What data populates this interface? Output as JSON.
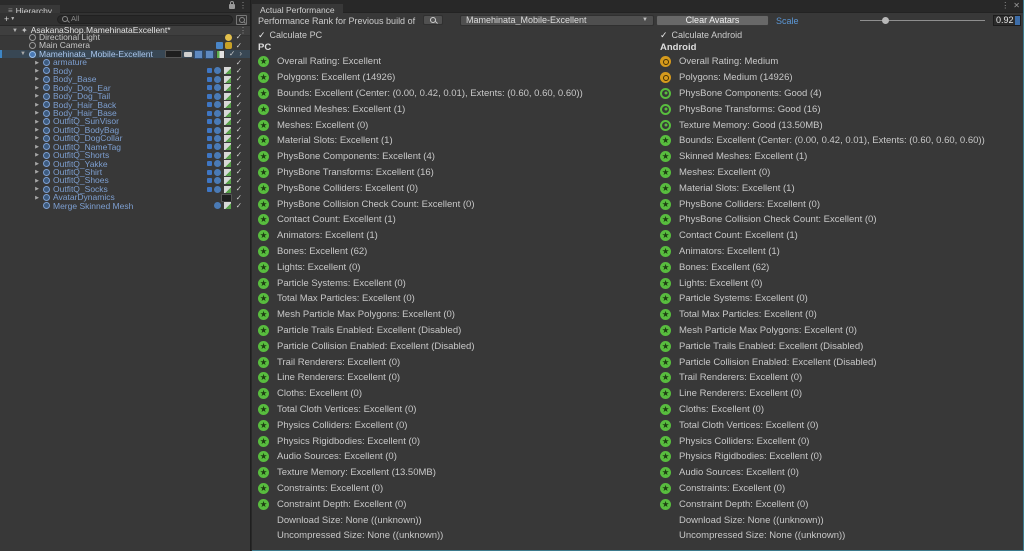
{
  "hierarchy": {
    "tab": "Hierarchy",
    "toolbar": {
      "add_button": "+",
      "search_placeholder": "All"
    },
    "scene": "AsakanaShop.MamehinataExcellent*",
    "items": [
      {
        "label": "Directional Light",
        "kind": "light",
        "level": 1,
        "fold": "none",
        "color": "plain",
        "right": [
          "sun"
        ],
        "check": true
      },
      {
        "label": "Main Camera",
        "kind": "camera",
        "level": 1,
        "fold": "none",
        "color": "plain",
        "right": [
          "camera",
          "lock"
        ],
        "check": true
      },
      {
        "label": "Mamehinata_Mobile-Excellent",
        "kind": "avatar",
        "level": 1,
        "fold": "open",
        "color": "prefab",
        "selected": true,
        "right": [
          "badge",
          "plug",
          "doc-blue",
          "doc-blue",
          "doc-green"
        ],
        "check": true,
        "arrow": true
      },
      {
        "label": "armature",
        "kind": "gameobject",
        "level": 2,
        "fold": "closed",
        "color": "prefab",
        "right": [],
        "check": true
      },
      {
        "label": "Body",
        "kind": "gameobject",
        "level": 2,
        "fold": "closed",
        "color": "prefab",
        "right": [
          "tag",
          "anim",
          "mesh"
        ],
        "check": true
      },
      {
        "label": "Body_Base",
        "kind": "gameobject",
        "level": 2,
        "fold": "closed",
        "color": "prefab",
        "right": [
          "tag",
          "anim",
          "mesh"
        ],
        "check": true
      },
      {
        "label": "Body_Dog_Ear",
        "kind": "gameobject",
        "level": 2,
        "fold": "closed",
        "color": "prefab",
        "right": [
          "tag",
          "anim",
          "mesh"
        ],
        "check": true
      },
      {
        "label": "Body_Dog_Tail",
        "kind": "gameobject",
        "level": 2,
        "fold": "closed",
        "color": "prefab",
        "right": [
          "tag",
          "anim",
          "mesh"
        ],
        "check": true
      },
      {
        "label": "Body_Hair_Back",
        "kind": "gameobject",
        "level": 2,
        "fold": "closed",
        "color": "prefab",
        "right": [
          "tag",
          "anim",
          "mesh"
        ],
        "check": true
      },
      {
        "label": "Body_Hair_Base",
        "kind": "gameobject",
        "level": 2,
        "fold": "closed",
        "color": "prefab",
        "right": [
          "tag",
          "anim",
          "mesh"
        ],
        "check": true
      },
      {
        "label": "OutfitQ_SunVisor",
        "kind": "gameobject",
        "level": 2,
        "fold": "closed",
        "color": "prefab",
        "right": [
          "tag",
          "anim",
          "mesh"
        ],
        "check": true
      },
      {
        "label": "OutfitQ_BodyBag",
        "kind": "gameobject",
        "level": 2,
        "fold": "closed",
        "color": "prefab",
        "right": [
          "tag",
          "anim",
          "mesh"
        ],
        "check": true
      },
      {
        "label": "OutfitQ_DogCollar",
        "kind": "gameobject",
        "level": 2,
        "fold": "closed",
        "color": "prefab",
        "right": [
          "tag",
          "anim",
          "mesh"
        ],
        "check": true
      },
      {
        "label": "OutfitQ_NameTag",
        "kind": "gameobject",
        "level": 2,
        "fold": "closed",
        "color": "prefab",
        "right": [
          "tag",
          "anim",
          "mesh"
        ],
        "check": true
      },
      {
        "label": "OutfitQ_Shorts",
        "kind": "gameobject",
        "level": 2,
        "fold": "closed",
        "color": "prefab",
        "right": [
          "tag",
          "anim",
          "mesh"
        ],
        "check": true
      },
      {
        "label": "OutfitQ_Yakke",
        "kind": "gameobject",
        "level": 2,
        "fold": "closed",
        "color": "prefab",
        "right": [
          "tag",
          "anim",
          "mesh"
        ],
        "check": true
      },
      {
        "label": "OutfitQ_Shirt",
        "kind": "gameobject",
        "level": 2,
        "fold": "closed",
        "color": "prefab",
        "right": [
          "tag",
          "anim",
          "mesh"
        ],
        "check": true
      },
      {
        "label": "OutfitQ_Shoes",
        "kind": "gameobject",
        "level": 2,
        "fold": "closed",
        "color": "prefab",
        "right": [
          "tag",
          "anim",
          "mesh"
        ],
        "check": true
      },
      {
        "label": "OutfitQ_Socks",
        "kind": "gameobject",
        "level": 2,
        "fold": "closed",
        "color": "prefab",
        "right": [
          "tag",
          "anim",
          "mesh"
        ],
        "check": true
      },
      {
        "label": "AvatarDynamics",
        "kind": "gameobject",
        "level": 2,
        "fold": "closed",
        "color": "prefab",
        "right": [
          "badge2"
        ],
        "check": true
      },
      {
        "label": "Merge Skinned Mesh",
        "kind": "gameobject",
        "level": 2,
        "fold": "none",
        "color": "prefab",
        "right": [
          "anim",
          "mesh"
        ],
        "check": true
      }
    ]
  },
  "performance": {
    "tab": "Actual Performance",
    "window_icons": {
      "menu": "⋮",
      "close": "✕"
    },
    "toolbar": {
      "label": "Performance Rank for Previous build of",
      "avatar_dropdown": "Mamehinata_Mobile-Excellent",
      "clear_button": "Clear Avatars",
      "scale_label": "Scale",
      "scale_value": "0.92",
      "scale_slider_pct": 20
    },
    "pc": {
      "checkbox_label": "Calculate PC",
      "checked": true,
      "header": "PC",
      "rows": [
        {
          "rank": "excellent",
          "text": "Overall Rating: Excellent"
        },
        {
          "rank": "excellent",
          "text": "Polygons: Excellent (14926)"
        },
        {
          "rank": "excellent",
          "text": "Bounds: Excellent (Center: (0.00, 0.42, 0.01), Extents: (0.60, 0.60, 0.60))"
        },
        {
          "rank": "excellent",
          "text": "Skinned Meshes: Excellent (1)"
        },
        {
          "rank": "excellent",
          "text": "Meshes: Excellent (0)"
        },
        {
          "rank": "excellent",
          "text": "Material Slots: Excellent (1)"
        },
        {
          "rank": "excellent",
          "text": "PhysBone Components: Excellent (4)"
        },
        {
          "rank": "excellent",
          "text": "PhysBone Transforms: Excellent (16)"
        },
        {
          "rank": "excellent",
          "text": "PhysBone Colliders: Excellent (0)"
        },
        {
          "rank": "excellent",
          "text": "PhysBone Collision Check Count: Excellent (0)"
        },
        {
          "rank": "excellent",
          "text": "Contact Count: Excellent (1)"
        },
        {
          "rank": "excellent",
          "text": "Animators: Excellent (1)"
        },
        {
          "rank": "excellent",
          "text": "Bones: Excellent (62)"
        },
        {
          "rank": "excellent",
          "text": "Lights: Excellent (0)"
        },
        {
          "rank": "excellent",
          "text": "Particle Systems: Excellent (0)"
        },
        {
          "rank": "excellent",
          "text": "Total Max Particles: Excellent (0)"
        },
        {
          "rank": "excellent",
          "text": "Mesh Particle Max Polygons: Excellent (0)"
        },
        {
          "rank": "excellent",
          "text": "Particle Trails Enabled: Excellent (Disabled)"
        },
        {
          "rank": "excellent",
          "text": "Particle Collision Enabled: Excellent (Disabled)"
        },
        {
          "rank": "excellent",
          "text": "Trail Renderers: Excellent (0)"
        },
        {
          "rank": "excellent",
          "text": "Line Renderers: Excellent (0)"
        },
        {
          "rank": "excellent",
          "text": "Cloths: Excellent (0)"
        },
        {
          "rank": "excellent",
          "text": "Total Cloth Vertices: Excellent (0)"
        },
        {
          "rank": "excellent",
          "text": "Physics Colliders: Excellent (0)"
        },
        {
          "rank": "excellent",
          "text": "Physics Rigidbodies: Excellent (0)"
        },
        {
          "rank": "excellent",
          "text": "Audio Sources: Excellent (0)"
        },
        {
          "rank": "excellent",
          "text": "Texture Memory: Excellent (13.50MB)"
        },
        {
          "rank": "excellent",
          "text": "Constraints: Excellent (0)"
        },
        {
          "rank": "excellent",
          "text": "Constraint Depth: Excellent (0)"
        },
        {
          "rank": "none",
          "text": "Download Size: None ((unknown))"
        },
        {
          "rank": "none",
          "text": "Uncompressed Size: None ((unknown))"
        }
      ]
    },
    "android": {
      "checkbox_label": "Calculate Android",
      "checked": true,
      "header": "Android",
      "rows": [
        {
          "rank": "medium",
          "text": "Overall Rating: Medium"
        },
        {
          "rank": "medium",
          "text": "Polygons: Medium (14926)"
        },
        {
          "rank": "good",
          "text": "PhysBone Components: Good (4)"
        },
        {
          "rank": "good",
          "text": "PhysBone Transforms: Good (16)"
        },
        {
          "rank": "good",
          "text": "Texture Memory: Good (13.50MB)"
        },
        {
          "rank": "excellent",
          "text": "Bounds: Excellent (Center: (0.00, 0.42, 0.01), Extents: (0.60, 0.60, 0.60))"
        },
        {
          "rank": "excellent",
          "text": "Skinned Meshes: Excellent (1)"
        },
        {
          "rank": "excellent",
          "text": "Meshes: Excellent (0)"
        },
        {
          "rank": "excellent",
          "text": "Material Slots: Excellent (1)"
        },
        {
          "rank": "excellent",
          "text": "PhysBone Colliders: Excellent (0)"
        },
        {
          "rank": "excellent",
          "text": "PhysBone Collision Check Count: Excellent (0)"
        },
        {
          "rank": "excellent",
          "text": "Contact Count: Excellent (1)"
        },
        {
          "rank": "excellent",
          "text": "Animators: Excellent (1)"
        },
        {
          "rank": "excellent",
          "text": "Bones: Excellent (62)"
        },
        {
          "rank": "excellent",
          "text": "Lights: Excellent (0)"
        },
        {
          "rank": "excellent",
          "text": "Particle Systems: Excellent (0)"
        },
        {
          "rank": "excellent",
          "text": "Total Max Particles: Excellent (0)"
        },
        {
          "rank": "excellent",
          "text": "Mesh Particle Max Polygons: Excellent (0)"
        },
        {
          "rank": "excellent",
          "text": "Particle Trails Enabled: Excellent (Disabled)"
        },
        {
          "rank": "excellent",
          "text": "Particle Collision Enabled: Excellent (Disabled)"
        },
        {
          "rank": "excellent",
          "text": "Trail Renderers: Excellent (0)"
        },
        {
          "rank": "excellent",
          "text": "Line Renderers: Excellent (0)"
        },
        {
          "rank": "excellent",
          "text": "Cloths: Excellent (0)"
        },
        {
          "rank": "excellent",
          "text": "Total Cloth Vertices: Excellent (0)"
        },
        {
          "rank": "excellent",
          "text": "Physics Colliders: Excellent (0)"
        },
        {
          "rank": "excellent",
          "text": "Physics Rigidbodies: Excellent (0)"
        },
        {
          "rank": "excellent",
          "text": "Audio Sources: Excellent (0)"
        },
        {
          "rank": "excellent",
          "text": "Constraints: Excellent (0)"
        },
        {
          "rank": "excellent",
          "text": "Constraint Depth: Excellent (0)"
        },
        {
          "rank": "none",
          "text": "Download Size: None ((unknown))"
        },
        {
          "rank": "none",
          "text": "Uncompressed Size: None ((unknown))"
        }
      ]
    }
  },
  "colors": {
    "rank_excellent": "#58bd3e",
    "rank_medium": "#d69a1c",
    "rank_good": "#58bd3e",
    "prefab_text": "#7d9fd1",
    "link_blue": "#5b97d6",
    "selection_blue": "#3d86c6",
    "panel_bg": "#383838"
  }
}
